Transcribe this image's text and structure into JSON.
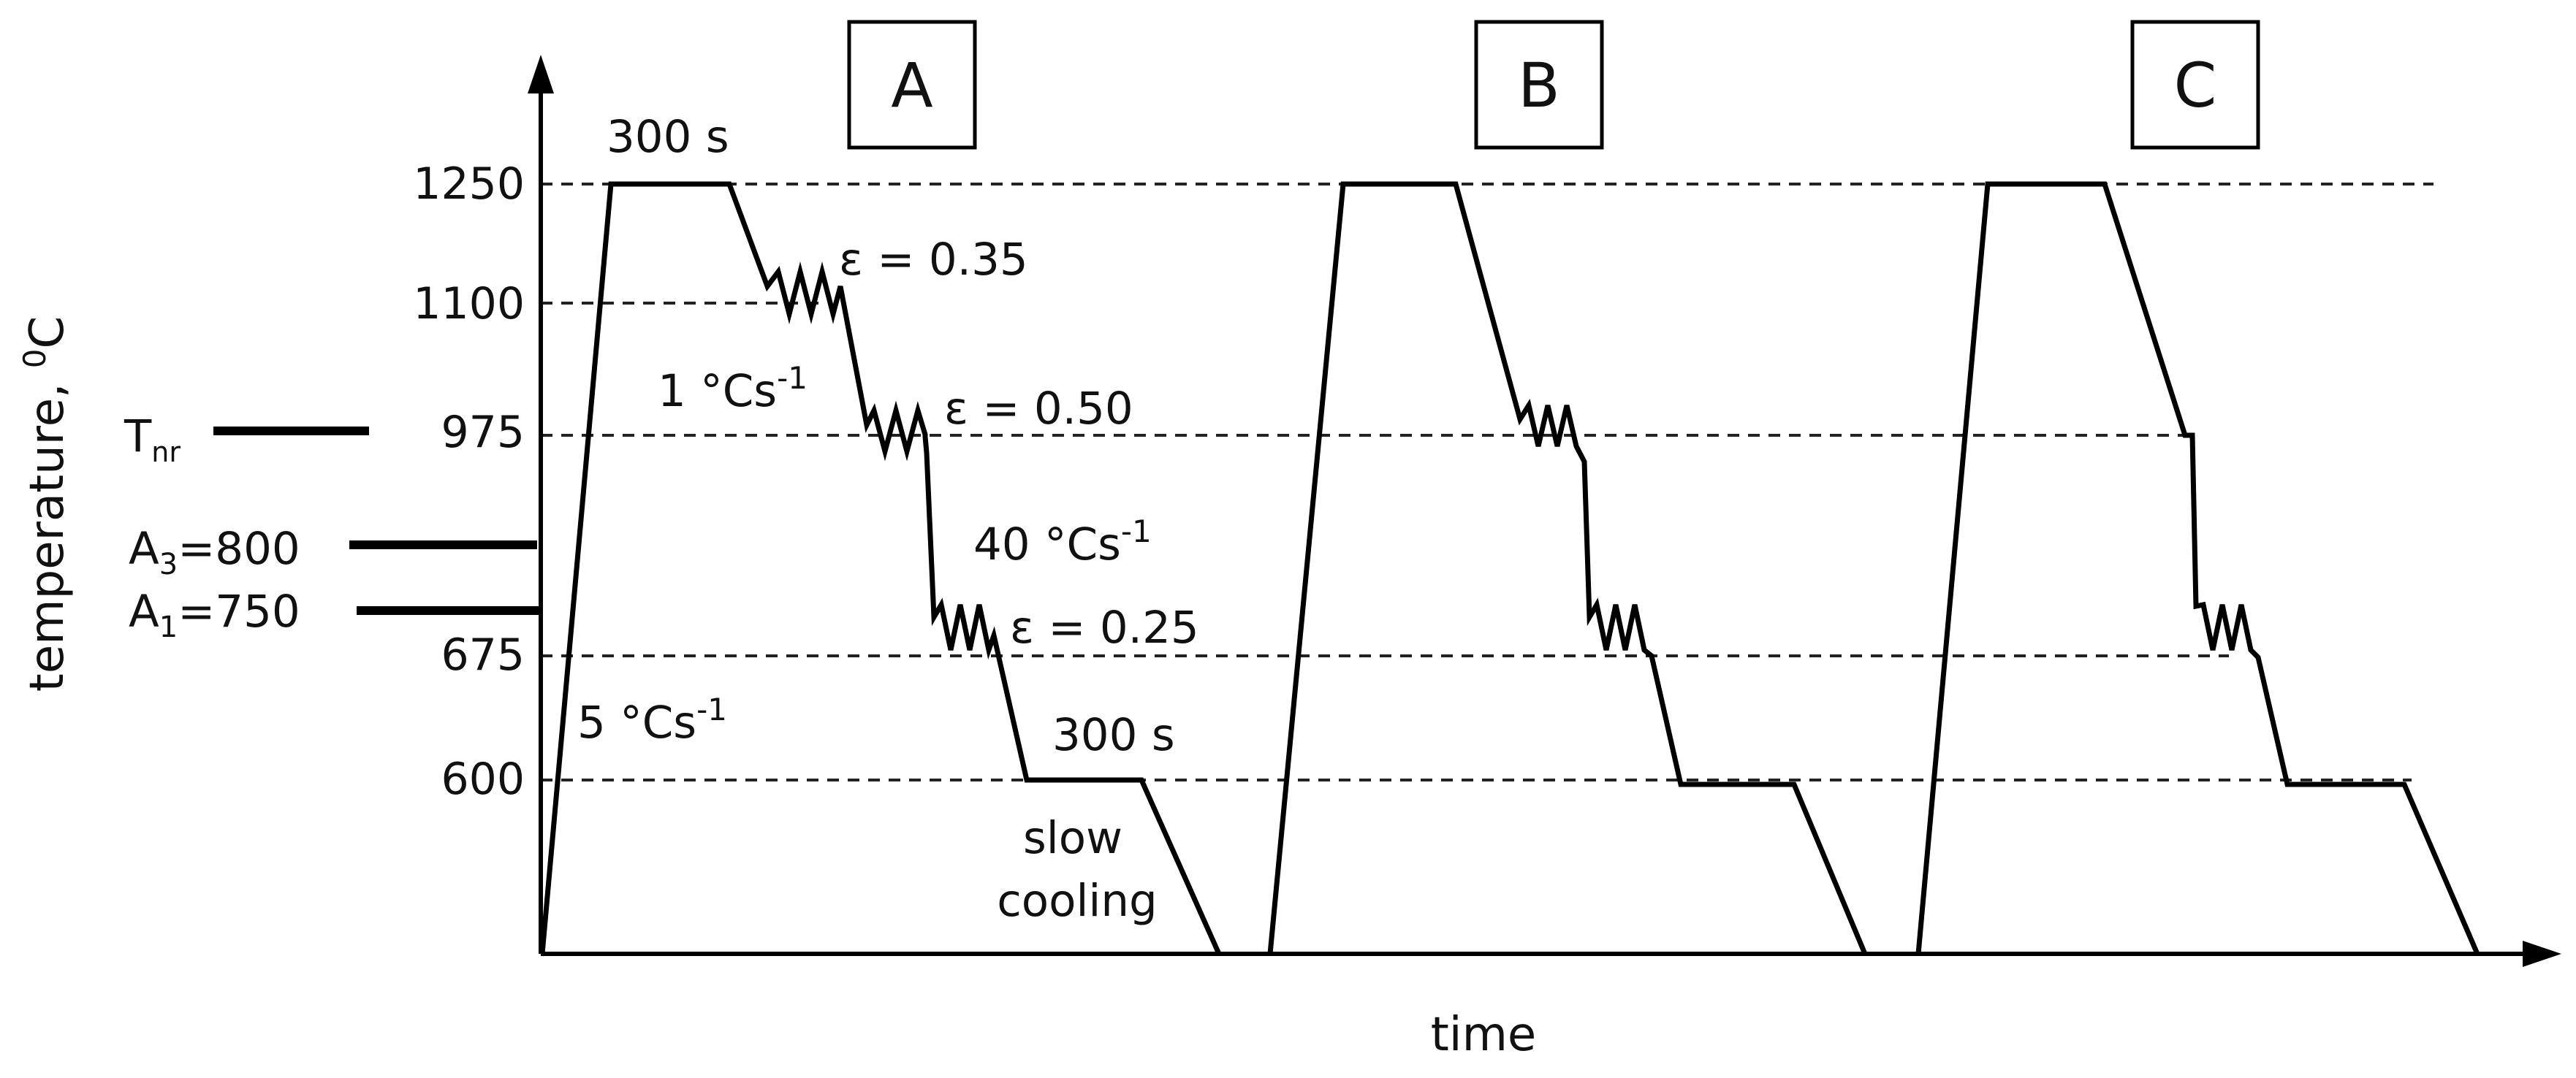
{
  "axes": {
    "y_label": "temperature, ",
    "y_label_unit": "°C",
    "y_label_unit_sup": "0",
    "x_label": "time"
  },
  "y_ticks": [
    "1250",
    "1100",
    "975",
    "675",
    "600"
  ],
  "reference_lines": {
    "tnr_main": "T",
    "tnr_sub": "nr",
    "a3_main": "A",
    "a3_sub": "3",
    "a3_rest": "=800",
    "a1_main": "A",
    "a1_sub": "1",
    "a1_rest": "=750"
  },
  "schedules": [
    {
      "id": "A",
      "label": "A"
    },
    {
      "id": "B",
      "label": "B"
    },
    {
      "id": "C",
      "label": "C"
    }
  ],
  "annotations": {
    "hold_top": "300 s",
    "strain_1": "ε = 0.35",
    "strain_2": "ε = 0.50",
    "strain_3": "ε = 0.25",
    "rate_1_main": "1 °Cs",
    "rate_1_sup": "-1",
    "rate_40_main": "40 °Cs",
    "rate_40_sup": "-1",
    "rate_5_main": "5 °Cs",
    "rate_5_sup": "-1",
    "hold_bottom": "300 s",
    "slow_1": "slow",
    "slow_2": "cooling"
  }
}
